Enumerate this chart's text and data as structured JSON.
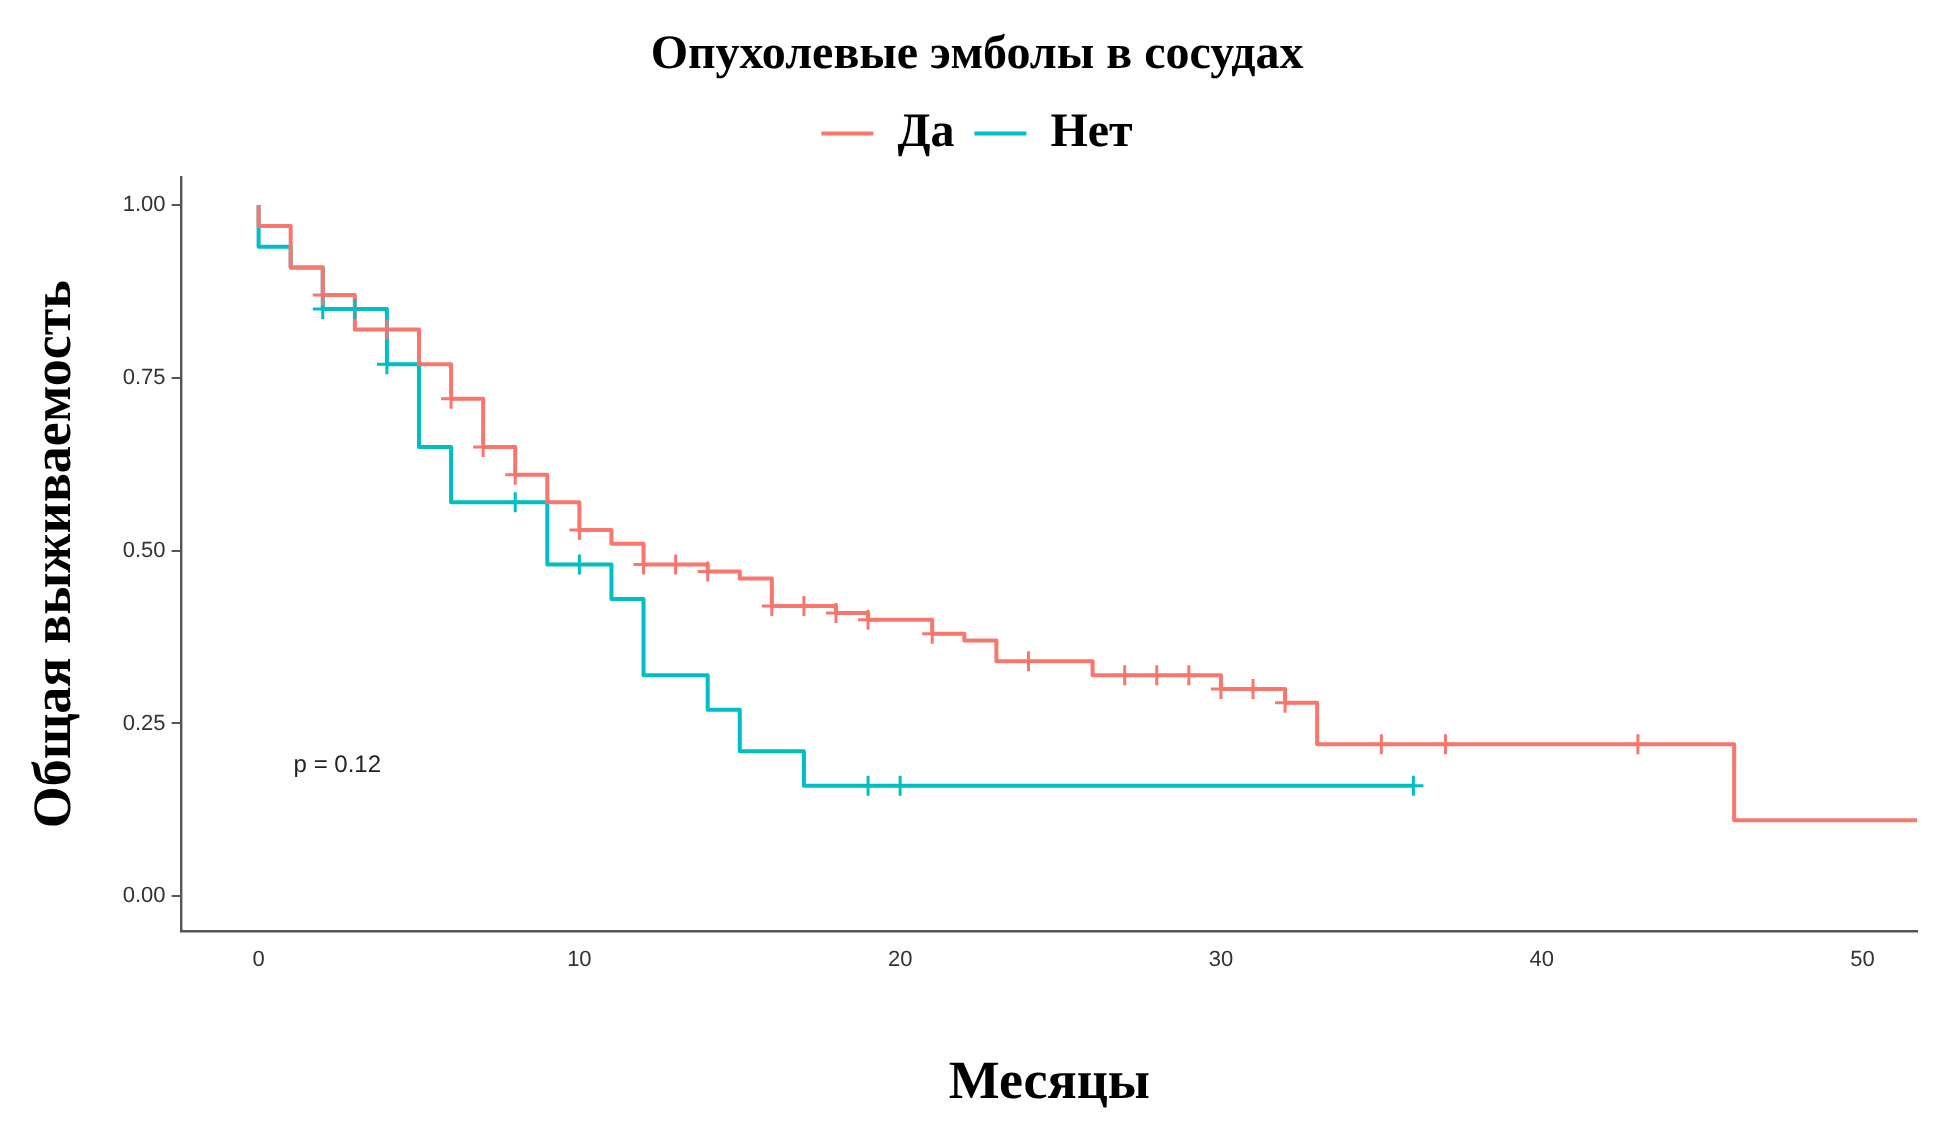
{
  "chart_data": {
    "type": "step",
    "legend_title": "Опухолевые эмболы в сосудах",
    "xlabel": "Месяцы",
    "ylabel": "Общая выживаемость",
    "annotations": [
      "p = 0.12"
    ],
    "series": [
      {
        "name": "Да",
        "type": "step",
        "color": "#f8766d",
        "marker": "none",
        "x": [
          0,
          0,
          1,
          2,
          3,
          5,
          6,
          7,
          8,
          9,
          10,
          11,
          12,
          14,
          15,
          16,
          18,
          19,
          21,
          22,
          23,
          26,
          30,
          32,
          33,
          46,
          51.7
        ],
        "values": [
          1,
          0.97,
          0.91,
          0.87,
          0.82,
          0.77,
          0.72,
          0.65,
          0.61,
          0.57,
          0.53,
          0.51,
          0.48,
          0.47,
          0.46,
          0.42,
          0.41,
          0.4,
          0.38,
          0.37,
          0.34,
          0.32,
          0.3,
          0.28,
          0.22,
          0.11,
          0.11
        ]
      },
      {
        "name": "Нет",
        "type": "step",
        "color": "#00bfc4",
        "marker": "none",
        "x": [
          0,
          0,
          1,
          2,
          4,
          5,
          6,
          9,
          11,
          12,
          14,
          15,
          17,
          36
        ],
        "values": [
          1,
          0.94,
          0.91,
          0.85,
          0.77,
          0.65,
          0.57,
          0.48,
          0.43,
          0.32,
          0.27,
          0.21,
          0.16,
          0.16
        ]
      },
      {
        "type": "scatter",
        "color": "#f8766d",
        "marker": "cross",
        "x": [
          2,
          4,
          6,
          7,
          8,
          10,
          12,
          13,
          14,
          16,
          17,
          18,
          19,
          21,
          24,
          27,
          28,
          29,
          30,
          31,
          32,
          35,
          37,
          43
        ],
        "values": [
          0.87,
          0.82,
          0.72,
          0.65,
          0.61,
          0.53,
          0.48,
          0.48,
          0.47,
          0.42,
          0.42,
          0.41,
          0.4,
          0.38,
          0.34,
          0.32,
          0.32,
          0.32,
          0.3,
          0.3,
          0.28,
          0.22,
          0.22,
          0.22
        ]
      },
      {
        "type": "scatter",
        "color": "#00bfc4",
        "marker": "cross",
        "x": [
          2,
          3,
          4,
          8,
          10,
          19,
          20,
          36
        ],
        "values": [
          0.85,
          0.85,
          0.77,
          0.57,
          0.48,
          0.16,
          0.16,
          0.16
        ]
      }
    ],
    "xlim": [
      -2.4,
      51.7
    ],
    "xticks": [
      0,
      10,
      20,
      30,
      40,
      50
    ],
    "ylim": [
      -0.05,
      1.04
    ],
    "yticks": [
      {
        "value": 0,
        "label": "0.00"
      },
      {
        "value": 0.25,
        "label": "0.25"
      },
      {
        "value": 0.5,
        "label": "0.50"
      },
      {
        "value": 0.75,
        "label": "0.75"
      },
      {
        "value": 1,
        "label": "1.00"
      }
    ],
    "grid": false,
    "legend": "top"
  }
}
